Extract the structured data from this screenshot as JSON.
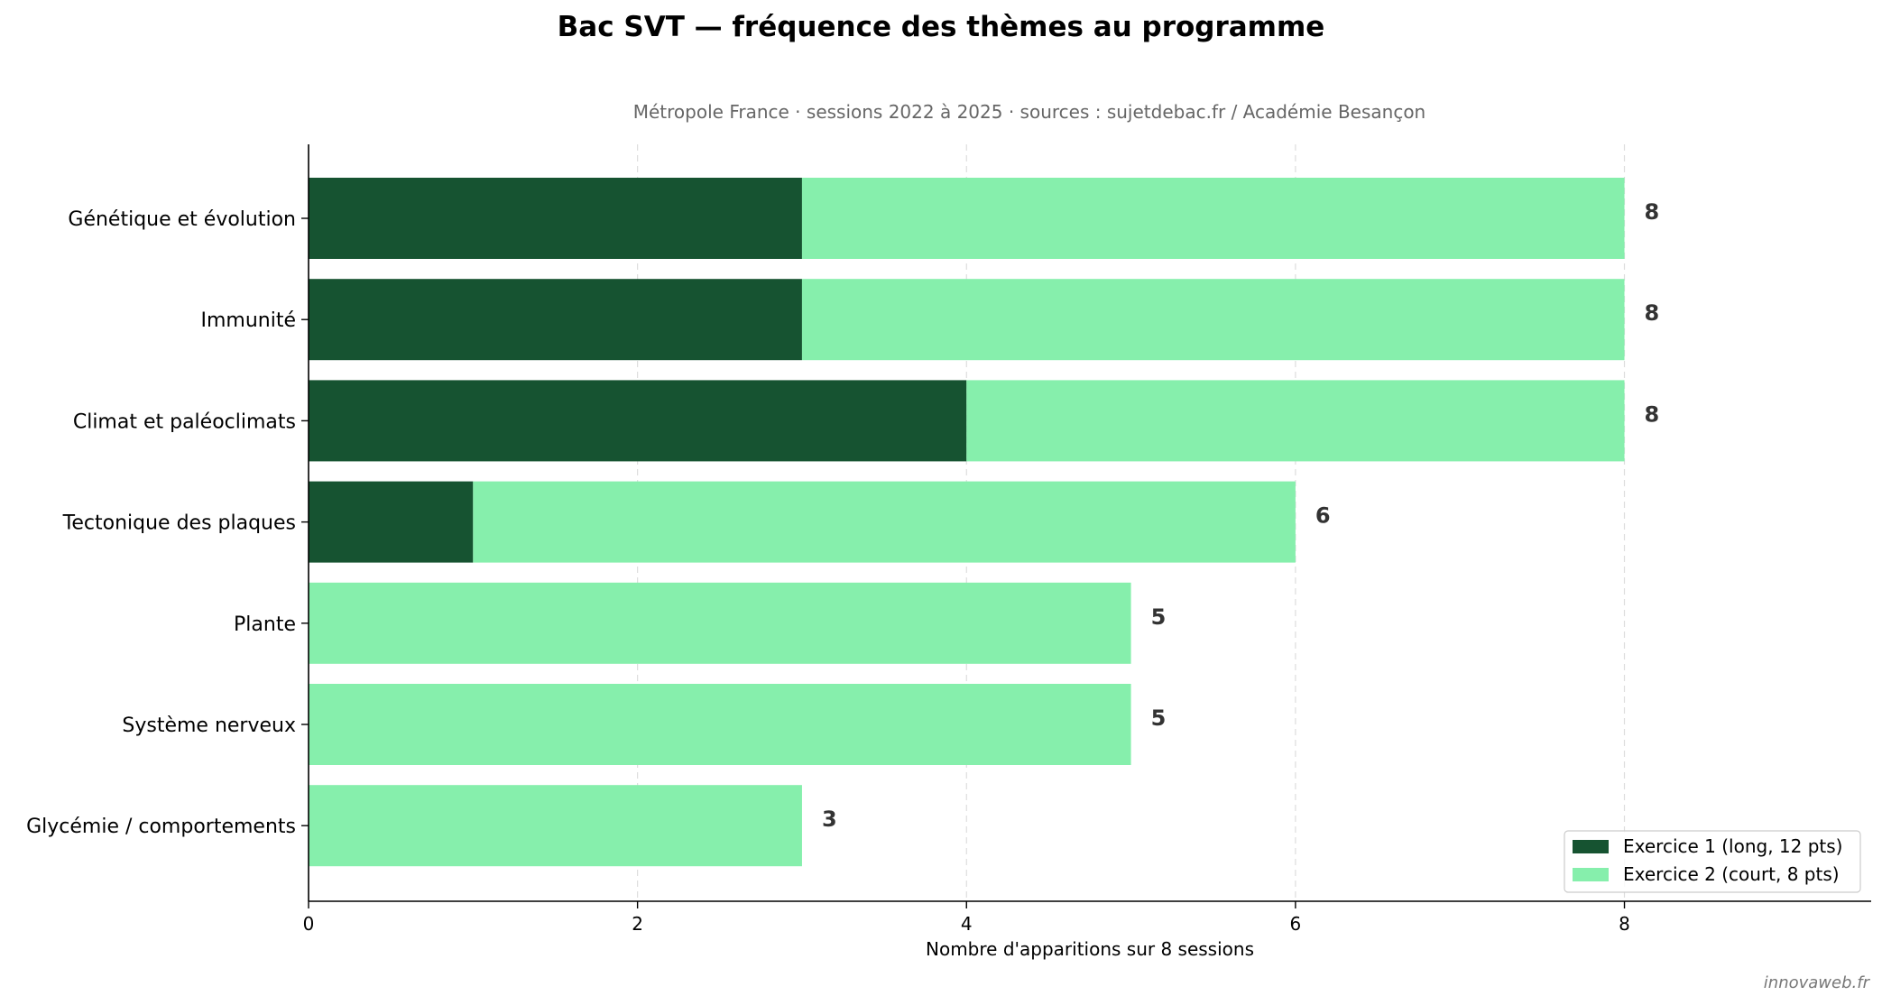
{
  "chart_data": {
    "type": "bar",
    "orientation": "horizontal",
    "stacked": true,
    "title": "Bac SVT — fréquence des thèmes au programme",
    "subtitle": "Métropole France · sessions 2022 à 2025 · sources : sujetdebac.fr / Académie Besançon",
    "xlabel": "Nombre d'apparitions sur 8 sessions",
    "ylabel": "",
    "xlim": [
      0,
      9.5
    ],
    "xticks": [
      0,
      2,
      4,
      6,
      8
    ],
    "grid": "vertical dashed",
    "legend_position": "bottom-right",
    "categories": [
      "Génétique et évolution",
      "Immunité",
      "Climat et paléoclimats",
      "Tectonique des plaques",
      "Plante",
      "Système nerveux",
      "Glycémie / comportements"
    ],
    "series": [
      {
        "name": "Exercice 1 (long, 12 pts)",
        "color": "#165331",
        "values": [
          3,
          3,
          4,
          1,
          0,
          0,
          0
        ]
      },
      {
        "name": "Exercice 2 (court, 8 pts)",
        "color": "#86efac",
        "values": [
          5,
          5,
          4,
          5,
          5,
          5,
          3
        ]
      }
    ],
    "totals": [
      8,
      8,
      8,
      6,
      5,
      5,
      3
    ]
  },
  "watermark": "innovaweb.fr"
}
